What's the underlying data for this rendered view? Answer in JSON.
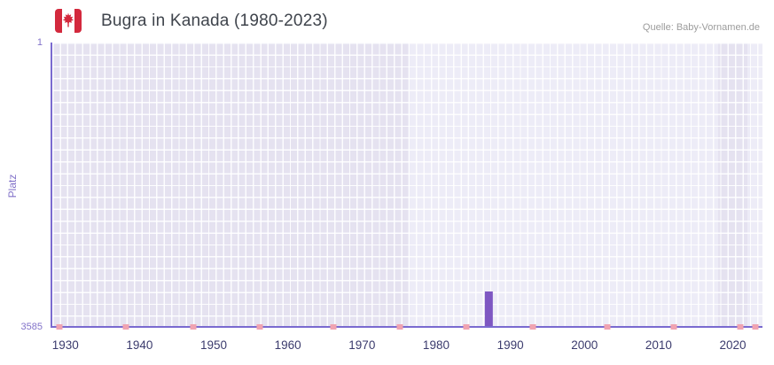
{
  "header": {
    "title": "Bugra in Kanada (1980-2023)",
    "source": "Quelle: Baby-Vornamen.de",
    "flag": "canada-flag"
  },
  "chart_data": {
    "type": "bar",
    "title": "Bugra in Kanada (1980-2023)",
    "xlabel": "",
    "ylabel": "Platz",
    "y_axis": {
      "top_tick": "1",
      "bottom_tick": "3585",
      "min": 1,
      "max": 3585,
      "inverted": true
    },
    "x_axis": {
      "range": [
        1928,
        2024
      ],
      "ticks": [
        1930,
        1940,
        1950,
        1960,
        1970,
        1980,
        1990,
        2000,
        2010,
        2020
      ]
    },
    "series": [
      {
        "name": "Platz",
        "color": "#7e57c2",
        "points": [
          {
            "x": 1987,
            "y": 3150
          }
        ]
      }
    ],
    "no_data_marks": {
      "color": "#f0a3b1",
      "years": [
        1929,
        1938,
        1947,
        1956,
        1966,
        1975,
        1984,
        1993,
        2003,
        2012,
        2021,
        2023
      ]
    },
    "background_bands": [
      {
        "from": 1928,
        "to": 1976,
        "tone": "dark"
      },
      {
        "from": 1976,
        "to": 2018,
        "tone": "light"
      },
      {
        "from": 2018,
        "to": 2022,
        "tone": "dark"
      },
      {
        "from": 2022,
        "to": 2024,
        "tone": "light"
      }
    ],
    "grid": true,
    "legend": "none"
  },
  "colors": {
    "title_text": "#3f444c",
    "source_text": "#9c9c9c",
    "tick_text": "#8272c9",
    "x_tick_text": "#3b3b6d",
    "axis_line": "#7a6ad0",
    "plot_bg_light": "#edecf7",
    "plot_bg_dark": "#e5e2f0",
    "grid_line": "#ffffff",
    "bar": "#7e57c2",
    "no_data_mark": "#f0a3b1",
    "flag_red": "#d3293d"
  }
}
